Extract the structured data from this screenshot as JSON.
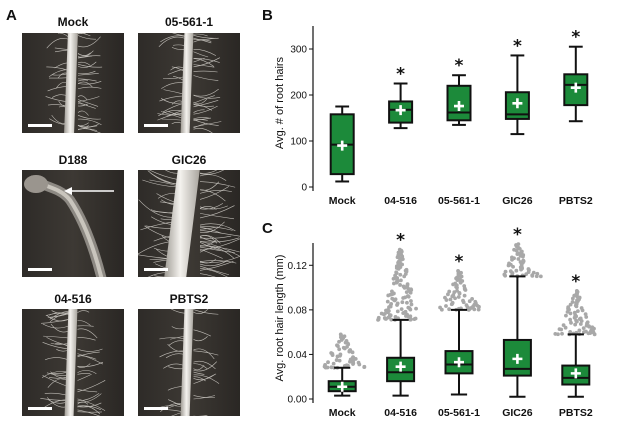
{
  "panel_a": {
    "letter": "A",
    "images": [
      {
        "title": "Mock",
        "style": "thin"
      },
      {
        "title": "05-561-1",
        "style": "hairy"
      },
      {
        "title": "D188",
        "style": "swollen"
      },
      {
        "title": "GIC26",
        "style": "thick"
      },
      {
        "title": "04-516",
        "style": "hairy"
      },
      {
        "title": "PBTS2",
        "style": "sparse"
      }
    ]
  },
  "panel_b": {
    "letter": "B",
    "chart_data": {
      "type": "box",
      "ylabel": "Avg. # of root hairs",
      "ylim": [
        0,
        350
      ],
      "yticks": [
        0,
        100,
        200,
        300
      ],
      "categories": [
        "Mock",
        "04-516",
        "05-561-1",
        "GIC26",
        "PBTS2"
      ],
      "boxes": [
        {
          "min": 12,
          "q1": 28,
          "median": 92,
          "q3": 158,
          "max": 175,
          "mean": 90,
          "significant": false
        },
        {
          "min": 128,
          "q1": 140,
          "median": 168,
          "q3": 186,
          "max": 225,
          "mean": 167,
          "significant": true
        },
        {
          "min": 135,
          "q1": 145,
          "median": 162,
          "q3": 220,
          "max": 243,
          "mean": 176,
          "significant": true
        },
        {
          "min": 115,
          "q1": 148,
          "median": 158,
          "q3": 206,
          "max": 286,
          "mean": 182,
          "significant": true
        },
        {
          "min": 143,
          "q1": 178,
          "median": 222,
          "q3": 245,
          "max": 305,
          "mean": 216,
          "significant": true
        }
      ],
      "box_color": "#1c8a3a",
      "significance_mark": "*"
    }
  },
  "panel_c": {
    "letter": "C",
    "chart_data": {
      "type": "box",
      "ylabel": "Avg. root hair length (mm)",
      "ylim": [
        0,
        0.14
      ],
      "yticks": [
        "0.00",
        "0.04",
        "0.08",
        "0.12"
      ],
      "categories": [
        "Mock",
        "04-516",
        "05-561-1",
        "GIC26",
        "PBTS2"
      ],
      "boxes": [
        {
          "min": 0.003,
          "q1": 0.007,
          "median": 0.011,
          "q3": 0.016,
          "max": 0.028,
          "mean": 0.011,
          "outlier_top": 0.058,
          "significant": false
        },
        {
          "min": 0.003,
          "q1": 0.016,
          "median": 0.024,
          "q3": 0.037,
          "max": 0.071,
          "mean": 0.029,
          "outlier_top": 0.134,
          "significant": true
        },
        {
          "min": 0.004,
          "q1": 0.023,
          "median": 0.031,
          "q3": 0.043,
          "max": 0.08,
          "mean": 0.033,
          "outlier_top": 0.115,
          "significant": true
        },
        {
          "min": 0.002,
          "q1": 0.021,
          "median": 0.027,
          "q3": 0.053,
          "max": 0.11,
          "mean": 0.036,
          "outlier_top": 0.139,
          "significant": true
        },
        {
          "min": 0.002,
          "q1": 0.013,
          "median": 0.019,
          "q3": 0.03,
          "max": 0.058,
          "mean": 0.023,
          "outlier_top": 0.097,
          "significant": true
        }
      ],
      "box_color": "#1c8a3a",
      "outlier_color": "#a8a8a8",
      "significance_mark": "*"
    }
  }
}
